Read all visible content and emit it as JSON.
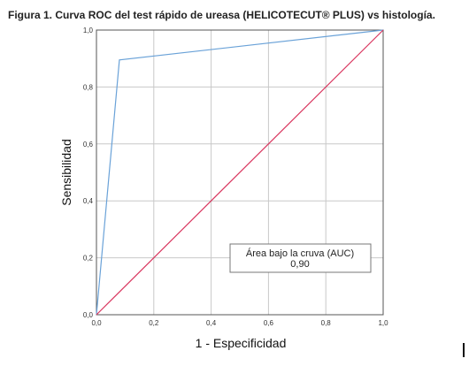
{
  "figure_title": "Figura 1. Curva ROC del test rápido de ureasa (HELICOTECUT® PLUS) vs histología.",
  "chart_data": {
    "type": "line",
    "title": "Figura 1. Curva ROC del test rápido de ureasa (HELICOTECUT® PLUS) vs histología.",
    "xlabel": "1 - Especificidad",
    "ylabel": "Sensibilidad",
    "xlim": [
      0,
      1
    ],
    "ylim": [
      0,
      1
    ],
    "grid": true,
    "x_ticks": [
      "0,0",
      "0,2",
      "0,4",
      "0,6",
      "0,8",
      "1,0"
    ],
    "y_ticks": [
      "0,0",
      "0,2",
      "0,4",
      "0,6",
      "0,8",
      "1,0"
    ],
    "series": [
      {
        "color": "#6aa2d8",
        "points": [
          [
            0,
            0
          ],
          [
            0.08,
            0.895
          ],
          [
            1,
            1
          ]
        ]
      },
      {
        "color": "#d9365f",
        "points": [
          [
            0,
            0
          ],
          [
            1,
            1
          ]
        ]
      }
    ],
    "annotation": {
      "label": "Área bajo la cruva (AUC)",
      "value": "0,90",
      "position": "bottom-right"
    }
  }
}
